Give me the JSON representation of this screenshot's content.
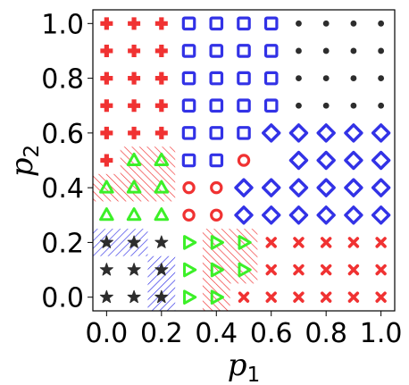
{
  "chart_data": {
    "type": "scatter",
    "title": "",
    "xlabel_base": "p",
    "xlabel_sub": "1",
    "ylabel_base": "p",
    "ylabel_sub": "2",
    "xlim": [
      -0.05,
      1.05
    ],
    "ylim": [
      -0.05,
      1.05
    ],
    "xticks": [
      0.0,
      0.2,
      0.4,
      0.6,
      0.8,
      1.0
    ],
    "yticks": [
      0.0,
      0.2,
      0.4,
      0.6,
      0.8,
      1.0
    ],
    "xtick_labels": [
      "0.0",
      "0.2",
      "0.4",
      "0.6",
      "0.8",
      "1.0"
    ],
    "ytick_labels": [
      "0.0",
      "0.2",
      "0.4",
      "0.6",
      "0.8",
      "1.0"
    ],
    "colors": {
      "red": "#f03232",
      "blue": "#3232e6",
      "green": "#3cf028",
      "dark": "#2d2d2d"
    },
    "series": [
      {
        "marker": "plus",
        "color": "red",
        "points": [
          [
            0.0,
            1.0
          ],
          [
            0.1,
            1.0
          ],
          [
            0.2,
            1.0
          ],
          [
            0.0,
            0.9
          ],
          [
            0.1,
            0.9
          ],
          [
            0.2,
            0.9
          ],
          [
            0.0,
            0.8
          ],
          [
            0.1,
            0.8
          ],
          [
            0.2,
            0.8
          ],
          [
            0.0,
            0.7
          ],
          [
            0.1,
            0.7
          ],
          [
            0.2,
            0.7
          ],
          [
            0.0,
            0.6
          ],
          [
            0.1,
            0.6
          ],
          [
            0.2,
            0.6
          ],
          [
            0.0,
            0.5
          ]
        ]
      },
      {
        "marker": "square",
        "color": "blue",
        "points": [
          [
            0.3,
            1.0
          ],
          [
            0.4,
            1.0
          ],
          [
            0.5,
            1.0
          ],
          [
            0.6,
            1.0
          ],
          [
            0.3,
            0.9
          ],
          [
            0.4,
            0.9
          ],
          [
            0.5,
            0.9
          ],
          [
            0.6,
            0.9
          ],
          [
            0.3,
            0.8
          ],
          [
            0.4,
            0.8
          ],
          [
            0.5,
            0.8
          ],
          [
            0.6,
            0.8
          ],
          [
            0.3,
            0.7
          ],
          [
            0.4,
            0.7
          ],
          [
            0.5,
            0.7
          ],
          [
            0.6,
            0.7
          ],
          [
            0.3,
            0.6
          ],
          [
            0.4,
            0.6
          ],
          [
            0.5,
            0.6
          ],
          [
            0.3,
            0.5
          ],
          [
            0.4,
            0.5
          ]
        ]
      },
      {
        "marker": "dot",
        "color": "dark",
        "points": [
          [
            0.7,
            1.0
          ],
          [
            0.8,
            1.0
          ],
          [
            0.9,
            1.0
          ],
          [
            1.0,
            1.0
          ],
          [
            0.7,
            0.9
          ],
          [
            0.8,
            0.9
          ],
          [
            0.9,
            0.9
          ],
          [
            1.0,
            0.9
          ],
          [
            0.7,
            0.8
          ],
          [
            0.8,
            0.8
          ],
          [
            0.9,
            0.8
          ],
          [
            1.0,
            0.8
          ],
          [
            0.7,
            0.7
          ],
          [
            0.8,
            0.7
          ],
          [
            0.9,
            0.7
          ],
          [
            1.0,
            0.7
          ]
        ]
      },
      {
        "marker": "diamond",
        "color": "blue",
        "points": [
          [
            0.6,
            0.6
          ],
          [
            0.7,
            0.6
          ],
          [
            0.8,
            0.6
          ],
          [
            0.9,
            0.6
          ],
          [
            1.0,
            0.6
          ],
          [
            0.7,
            0.5
          ],
          [
            0.8,
            0.5
          ],
          [
            0.9,
            0.5
          ],
          [
            1.0,
            0.5
          ],
          [
            0.5,
            0.4
          ],
          [
            0.6,
            0.4
          ],
          [
            0.7,
            0.4
          ],
          [
            0.8,
            0.4
          ],
          [
            0.9,
            0.4
          ],
          [
            1.0,
            0.4
          ],
          [
            0.5,
            0.3
          ],
          [
            0.6,
            0.3
          ],
          [
            0.7,
            0.3
          ],
          [
            0.8,
            0.3
          ],
          [
            0.9,
            0.3
          ],
          [
            1.0,
            0.3
          ]
        ]
      },
      {
        "marker": "circle",
        "color": "red",
        "points": [
          [
            0.5,
            0.5
          ],
          [
            0.3,
            0.4
          ],
          [
            0.4,
            0.4
          ],
          [
            0.3,
            0.3
          ],
          [
            0.4,
            0.3
          ]
        ]
      },
      {
        "marker": "triangle-up",
        "color": "green",
        "points": [
          [
            0.1,
            0.5
          ],
          [
            0.2,
            0.5
          ],
          [
            0.0,
            0.4
          ],
          [
            0.1,
            0.4
          ],
          [
            0.2,
            0.4
          ],
          [
            0.0,
            0.3
          ],
          [
            0.1,
            0.3
          ],
          [
            0.2,
            0.3
          ]
        ]
      },
      {
        "marker": "star",
        "color": "dark",
        "points": [
          [
            0.0,
            0.2
          ],
          [
            0.1,
            0.2
          ],
          [
            0.2,
            0.2
          ],
          [
            0.0,
            0.1
          ],
          [
            0.1,
            0.1
          ],
          [
            0.2,
            0.1
          ],
          [
            0.0,
            0.0
          ],
          [
            0.1,
            0.0
          ],
          [
            0.2,
            0.0
          ]
        ]
      },
      {
        "marker": "triangle-right",
        "color": "green",
        "points": [
          [
            0.3,
            0.2
          ],
          [
            0.4,
            0.2
          ],
          [
            0.5,
            0.2
          ],
          [
            0.3,
            0.1
          ],
          [
            0.4,
            0.1
          ],
          [
            0.5,
            0.1
          ],
          [
            0.3,
            0.0
          ],
          [
            0.4,
            0.0
          ]
        ]
      },
      {
        "marker": "x",
        "color": "red",
        "points": [
          [
            0.6,
            0.2
          ],
          [
            0.7,
            0.2
          ],
          [
            0.8,
            0.2
          ],
          [
            0.9,
            0.2
          ],
          [
            1.0,
            0.2
          ],
          [
            0.6,
            0.1
          ],
          [
            0.7,
            0.1
          ],
          [
            0.8,
            0.1
          ],
          [
            0.9,
            0.1
          ],
          [
            1.0,
            0.1
          ],
          [
            0.5,
            0.0
          ],
          [
            0.6,
            0.0
          ],
          [
            0.7,
            0.0
          ],
          [
            0.8,
            0.0
          ],
          [
            0.9,
            0.0
          ],
          [
            1.0,
            0.0
          ]
        ]
      }
    ],
    "hatched_regions": [
      {
        "color": "red",
        "x_range": [
          0.05,
          0.25
        ],
        "y_range": [
          0.45,
          0.55
        ]
      },
      {
        "color": "red",
        "x_range": [
          -0.05,
          0.25
        ],
        "y_range": [
          0.35,
          0.45
        ]
      },
      {
        "color": "blue",
        "x_range": [
          -0.05,
          0.15
        ],
        "y_range": [
          0.15,
          0.25
        ]
      },
      {
        "color": "blue",
        "x_range": [
          0.15,
          0.25
        ],
        "y_range": [
          -0.05,
          0.15
        ]
      },
      {
        "color": "red",
        "x_range": [
          0.35,
          0.55
        ],
        "y_range": [
          0.05,
          0.25
        ]
      },
      {
        "color": "red",
        "x_range": [
          0.35,
          0.45
        ],
        "y_range": [
          -0.05,
          0.05
        ]
      }
    ]
  }
}
